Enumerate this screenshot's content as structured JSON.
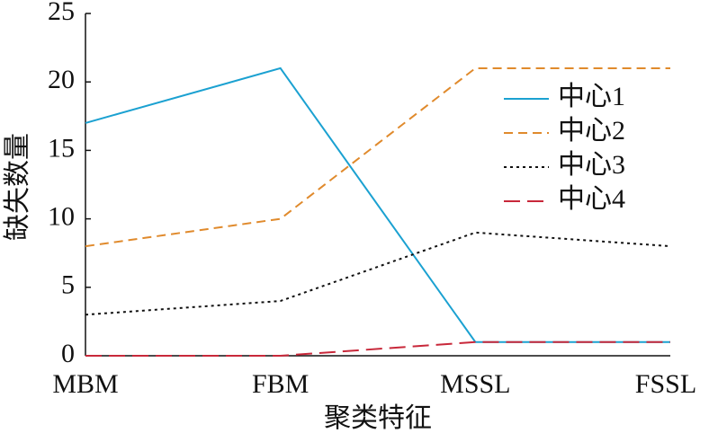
{
  "chart_data": {
    "type": "line",
    "x_label": "聚类特征",
    "y_label": "缺失数量",
    "categories": [
      "MBM",
      "FBM",
      "MSSL",
      "FSSL"
    ],
    "series": [
      {
        "name": "中心1",
        "color": "#1ba1d1",
        "dash": "solid",
        "values": [
          17,
          21,
          1,
          1
        ]
      },
      {
        "name": "中心2",
        "color": "#e08a2c",
        "dash": "dashed",
        "values": [
          8,
          10,
          21,
          21
        ]
      },
      {
        "name": "中心3",
        "color": "#111111",
        "dash": "dotted",
        "values": [
          3,
          4,
          9,
          8
        ]
      },
      {
        "name": "中心4",
        "color": "#c8283a",
        "dash": "longdash",
        "values": [
          0,
          0,
          1,
          1
        ]
      }
    ],
    "ylim": [
      0,
      25
    ],
    "yticks": [
      0,
      5,
      10,
      15,
      20,
      25
    ],
    "legend": "upper right"
  }
}
